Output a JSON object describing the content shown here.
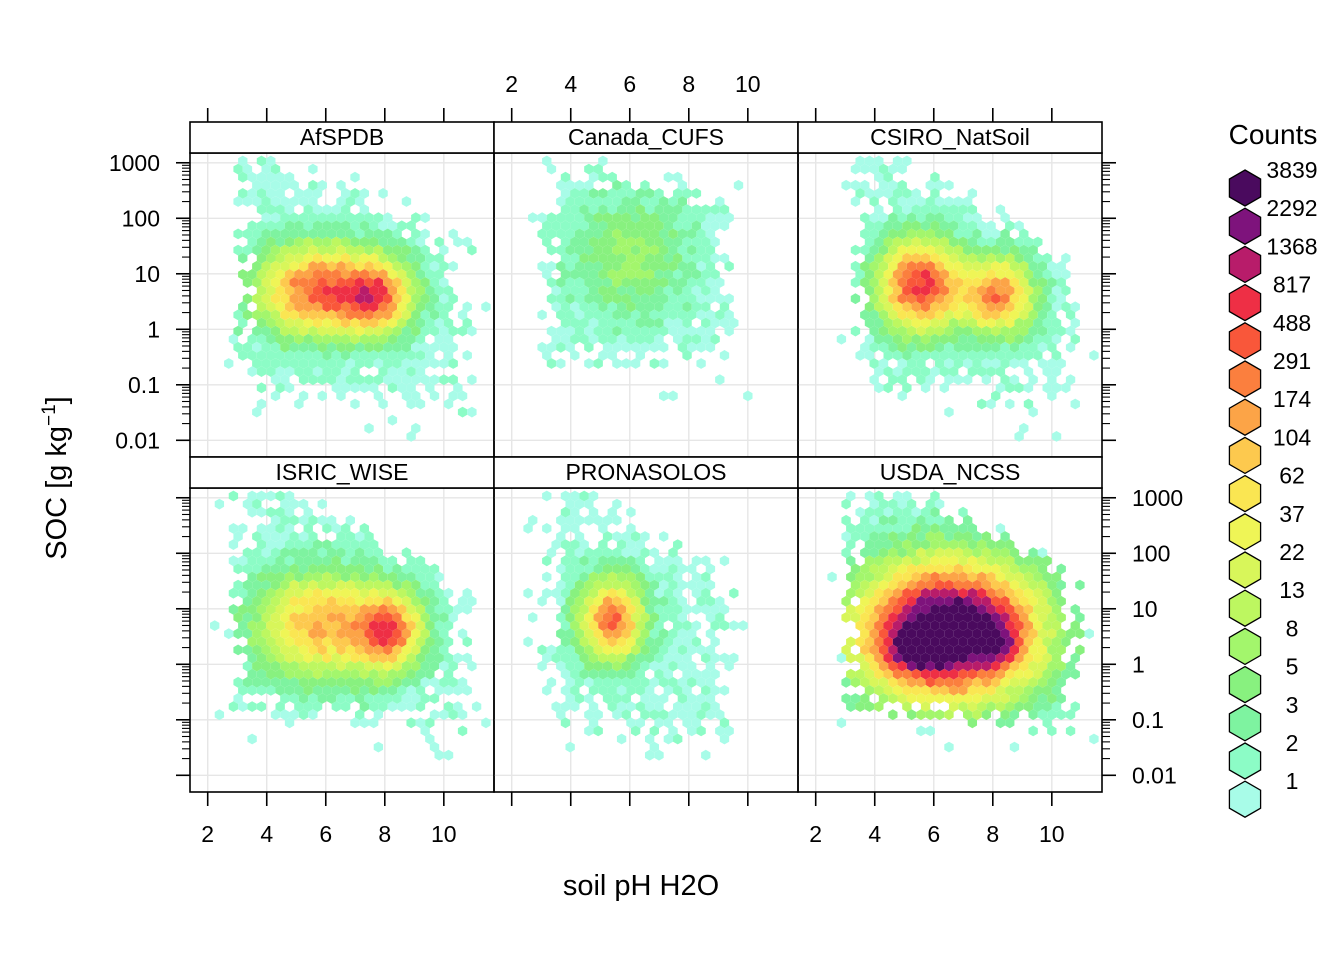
{
  "chart_data": {
    "type": "heatmap",
    "subtype": "hexbin-lattice",
    "xlabel": "soil pH H2O",
    "ylabel_main": "SOC [g kg",
    "ylabel_sup": "−1",
    "ylabel_close": "]",
    "y_scale": "log10",
    "xlim": [
      1.4,
      11.7
    ],
    "ylim": [
      0.005,
      1500
    ],
    "x_ticks": [
      2,
      4,
      6,
      8,
      10
    ],
    "x_tick_labels": [
      "2",
      "4",
      "6",
      "8",
      "10"
    ],
    "y_ticks": [
      0.01,
      0.1,
      1,
      10,
      100,
      1000
    ],
    "y_tick_labels": [
      "0.01",
      "0.1",
      "1",
      "10",
      "100",
      "1000"
    ],
    "grid": true,
    "legend": {
      "title": "Counts",
      "position": "right",
      "breaks": [
        {
          "label": "3839",
          "color": "#4a0a5e"
        },
        {
          "label": "2292",
          "color": "#7e137c"
        },
        {
          "label": "1368",
          "color": "#b81c6a"
        },
        {
          "label": "817",
          "color": "#ee2f45"
        },
        {
          "label": "488",
          "color": "#f9573a"
        },
        {
          "label": "291",
          "color": "#fb7f3e"
        },
        {
          "label": "174",
          "color": "#fca447"
        },
        {
          "label": "104",
          "color": "#fdc94e"
        },
        {
          "label": "62",
          "color": "#fae652"
        },
        {
          "label": "37",
          "color": "#eff556"
        },
        {
          "label": "22",
          "color": "#d8f65a"
        },
        {
          "label": "13",
          "color": "#bdf760"
        },
        {
          "label": "8",
          "color": "#a3f66c"
        },
        {
          "label": "5",
          "color": "#88f17f"
        },
        {
          "label": "3",
          "color": "#7ef3a0"
        },
        {
          "label": "2",
          "color": "#8cfcc6"
        },
        {
          "label": "1",
          "color": "#a8fce8"
        }
      ]
    },
    "panels": [
      {
        "name": "AfSPDB",
        "row": 0,
        "col": 0,
        "blobs": [
          {
            "ph": 5.6,
            "log_soc": 0.7,
            "sx": 1.4,
            "sy": 0.6,
            "peak": 5.0
          },
          {
            "ph": 7.8,
            "log_soc": 0.6,
            "sx": 0.9,
            "sy": 0.5,
            "peak": 4.2
          }
        ],
        "envelope": {
          "ph_min": 3.0,
          "ph_max": 11.0,
          "log_min": -1.3,
          "log_max": 2.8,
          "tilt": 0.25
        }
      },
      {
        "name": "Canada_CUFS",
        "row": 0,
        "col": 1,
        "blobs": [
          {
            "ph": 6.0,
            "log_soc": 1.3,
            "sx": 1.5,
            "sy": 0.8,
            "peak": 1.7
          }
        ],
        "envelope": {
          "ph_min": 3.0,
          "ph_max": 9.6,
          "log_min": -0.7,
          "log_max": 2.8,
          "tilt": 0.1
        }
      },
      {
        "name": "CSIRO_NatSoil",
        "row": 0,
        "col": 2,
        "blobs": [
          {
            "ph": 5.5,
            "log_soc": 0.8,
            "sx": 1.0,
            "sy": 0.6,
            "peak": 5.6
          },
          {
            "ph": 8.2,
            "log_soc": 0.6,
            "sx": 0.9,
            "sy": 0.5,
            "peak": 4.6
          }
        ],
        "envelope": {
          "ph_min": 3.2,
          "ph_max": 10.9,
          "log_min": -1.3,
          "log_max": 2.8,
          "tilt": 0.3
        }
      },
      {
        "name": "ISRIC_WISE",
        "row": 1,
        "col": 0,
        "blobs": [
          {
            "ph": 5.8,
            "log_soc": 0.7,
            "sx": 1.6,
            "sy": 0.7,
            "peak": 4.2
          },
          {
            "ph": 8.2,
            "log_soc": 0.6,
            "sx": 0.8,
            "sy": 0.5,
            "peak": 4.4
          }
        ],
        "envelope": {
          "ph_min": 2.8,
          "ph_max": 11.0,
          "log_min": -1.0,
          "log_max": 2.9,
          "tilt": 0.3
        }
      },
      {
        "name": "PRONASOLOS",
        "row": 1,
        "col": 1,
        "blobs": [
          {
            "ph": 5.4,
            "log_soc": 0.8,
            "sx": 0.8,
            "sy": 0.55,
            "peak": 5.0
          }
        ],
        "envelope": {
          "ph_min": 3.0,
          "ph_max": 9.6,
          "log_min": -1.3,
          "log_max": 2.8,
          "tilt": 0.35
        }
      },
      {
        "name": "USDA_NCSS",
        "row": 1,
        "col": 2,
        "blobs": [
          {
            "ph": 6.5,
            "log_soc": 0.6,
            "sx": 2.2,
            "sy": 0.9,
            "peak": 8.0
          },
          {
            "ph": 5.2,
            "log_soc": 0.2,
            "sx": 0.8,
            "sy": 0.3,
            "peak": 1.5
          },
          {
            "ph": 8.2,
            "log_soc": 0.4,
            "sx": 0.6,
            "sy": 0.35,
            "peak": 1.6
          }
        ],
        "envelope": {
          "ph_min": 3.0,
          "ph_max": 11.0,
          "log_min": -1.0,
          "log_max": 3.1,
          "tilt": 0.3
        }
      }
    ]
  }
}
